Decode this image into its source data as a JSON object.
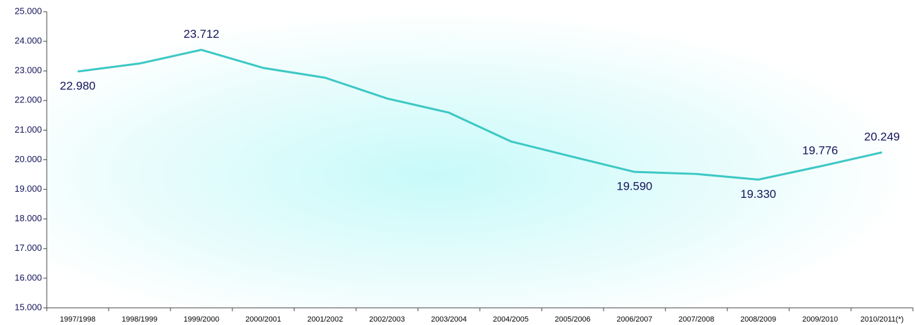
{
  "chart_data": {
    "type": "line",
    "categories": [
      "1997/1998",
      "1998/1999",
      "1999/2000",
      "2000/2001",
      "2001/2002",
      "2002/2003",
      "2003/2004",
      "2004/2005",
      "2005/2006",
      "2006/2007",
      "2007/2008",
      "2008/2009",
      "2009/2010",
      "2010/2011(*)"
    ],
    "values": [
      22980,
      23250,
      23712,
      23100,
      22770,
      22070,
      21590,
      20620,
      20100,
      19590,
      19520,
      19330,
      19776,
      20249
    ],
    "value_labels": [
      "22.980",
      null,
      "23.712",
      null,
      null,
      null,
      null,
      null,
      null,
      "19.590",
      null,
      "19.330",
      "19.776",
      "20.249"
    ],
    "color": "#3cc8c4",
    "ylim": [
      15000,
      25000
    ],
    "yticks": [
      {
        "value": 15000,
        "label": "15.000"
      },
      {
        "value": 16000,
        "label": "16.000"
      },
      {
        "value": 17000,
        "label": "17.000"
      },
      {
        "value": 18000,
        "label": "18.000"
      },
      {
        "value": 19000,
        "label": "19.000"
      },
      {
        "value": 20000,
        "label": "20.000"
      },
      {
        "value": 21000,
        "label": "21.000"
      },
      {
        "value": 22000,
        "label": "22.000"
      },
      {
        "value": 23000,
        "label": "23.000"
      },
      {
        "value": 24000,
        "label": "24.000"
      },
      {
        "value": 25000,
        "label": "25.000"
      }
    ],
    "grid": false
  }
}
